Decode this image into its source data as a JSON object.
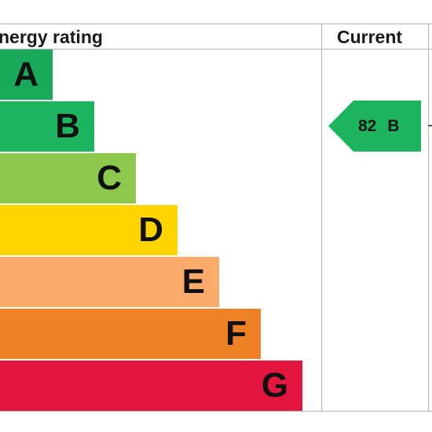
{
  "header": {
    "rating_label": "nergy rating",
    "current_label": "Current"
  },
  "chart_data": {
    "type": "bar",
    "categories": [
      "A",
      "B",
      "C",
      "D",
      "E",
      "F",
      "G"
    ],
    "band_colors": [
      "#18a95a",
      "#1db45f",
      "#8cc84b",
      "#ffd500",
      "#fbab69",
      "#ee8026",
      "#e2163f"
    ],
    "current": {
      "value": "82",
      "band": "B",
      "color": "#1db45f"
    }
  }
}
